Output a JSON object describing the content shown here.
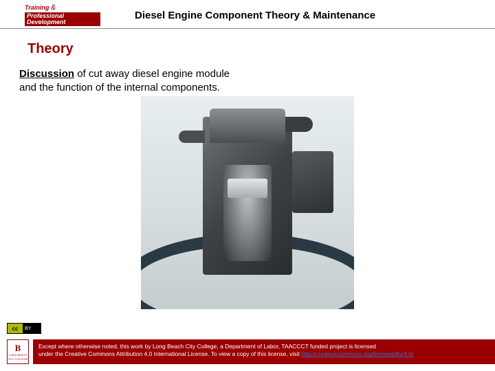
{
  "header": {
    "logo_training": "Training",
    "logo_amp": "&",
    "logo_prof": "Professional Development",
    "title": "Diesel Engine Component Theory & Maintenance"
  },
  "section": {
    "title": "Theory"
  },
  "body": {
    "lead": "Discussion",
    "rest_line1": " of cut away diesel engine module",
    "line2": "and the function of the internal components."
  },
  "cc": {
    "left": "cc",
    "right": "BY"
  },
  "lb": {
    "big": "B",
    "small1": "LONG BEACH",
    "small2": "CITY COLLEGE"
  },
  "footer": {
    "text1": "Except where otherwise noted, this work by Long Beach City College, a Department of Labor, TAACCCT funded project is licensed",
    "text2_a": "under the Creative Commons Attribution 4.0 International License. To view a copy of this license, visit ",
    "link": "http://creativecommons.org/licenses/by/4.0/"
  },
  "colors": {
    "brand_red": "#9a0000",
    "link_blue": "#3a6fc4",
    "bg": "#ffffff"
  }
}
